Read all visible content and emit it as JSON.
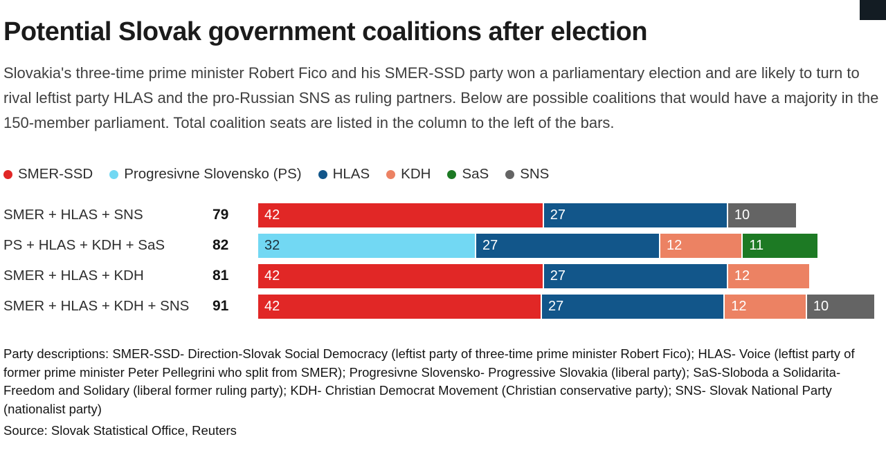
{
  "brand": {
    "corner_mark_color": "#131c23"
  },
  "chart_data": {
    "type": "bar",
    "variant": "horizontal-stacked",
    "title": "Potential Slovak government coalitions after election",
    "subtitle": "Slovakia's three-time prime minister Robert Fico and his SMER-SSD party won a parliamentary election and are likely to turn to rival leftist party HLAS and the pro-Russian SNS as ruling partners. Below are possible coalitions that would have a majority in the 150-member parliament. Total coalition seats are listed in the column to the left of the bars.",
    "unit": "seats",
    "x_axis": {
      "min": 0,
      "max": 91,
      "visible": false
    },
    "legend_position": "top",
    "legend": [
      {
        "party": "SMER-SSD",
        "color": "#e12726",
        "text_color": "#ffffff"
      },
      {
        "party": "Progresivne Slovensko (PS)",
        "color": "#72d8f3",
        "text_color": "#20323c"
      },
      {
        "party": "HLAS",
        "color": "#12568a",
        "text_color": "#ffffff"
      },
      {
        "party": "KDH",
        "color": "#ec8263",
        "text_color": "#ffffff"
      },
      {
        "party": "SaS",
        "color": "#1d7a24",
        "text_color": "#ffffff"
      },
      {
        "party": "SNS",
        "color": "#646464",
        "text_color": "#ffffff"
      }
    ],
    "rows": [
      {
        "label": "SMER + HLAS + SNS",
        "total": 79,
        "segments": [
          {
            "party": "SMER-SSD",
            "value": 42
          },
          {
            "party": "HLAS",
            "value": 27
          },
          {
            "party": "SNS",
            "value": 10
          }
        ]
      },
      {
        "label": "PS + HLAS + KDH + SaS",
        "total": 82,
        "segments": [
          {
            "party": "Progresivne Slovensko (PS)",
            "value": 32
          },
          {
            "party": "HLAS",
            "value": 27
          },
          {
            "party": "KDH",
            "value": 12
          },
          {
            "party": "SaS",
            "value": 11
          }
        ]
      },
      {
        "label": "SMER + HLAS + KDH",
        "total": 81,
        "segments": [
          {
            "party": "SMER-SSD",
            "value": 42
          },
          {
            "party": "HLAS",
            "value": 27
          },
          {
            "party": "KDH",
            "value": 12
          }
        ]
      },
      {
        "label": "SMER + HLAS + KDH + SNS",
        "total": 91,
        "segments": [
          {
            "party": "SMER-SSD",
            "value": 42
          },
          {
            "party": "HLAS",
            "value": 27
          },
          {
            "party": "KDH",
            "value": 12
          },
          {
            "party": "SNS",
            "value": 10
          }
        ]
      }
    ],
    "notes": "Party descriptions: SMER-SSD- Direction-Slovak Social Democracy (leftist party of three-time prime minister Robert Fico); HLAS- Voice (leftist party of former prime minister Peter Pellegrini who split from SMER); Progresivne Slovensko- Progressive Slovakia (liberal party); SaS-Sloboda a Solidarita- Freedom and Solidary (liberal former ruling party); KDH- Christian Democrat Movement (Christian conservative party); SNS- Slovak National Party (nationalist party)",
    "source": "Source: Slovak Statistical Office, Reuters"
  }
}
